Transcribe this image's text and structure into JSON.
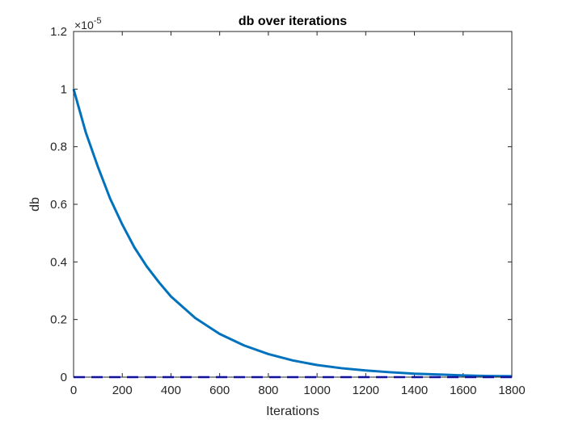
{
  "chart_data": {
    "type": "line",
    "title": "db over iterations",
    "xlabel": "Iterations",
    "ylabel": "db",
    "y_exponent_label": "×10",
    "y_exponent_power": "-5",
    "xlim": [
      0,
      1800
    ],
    "ylim": [
      0,
      1.2
    ],
    "x_ticks": [
      "0",
      "200",
      "400",
      "600",
      "800",
      "1000",
      "1200",
      "1400",
      "1600",
      "1800"
    ],
    "y_ticks": [
      "0",
      "0.2",
      "0.4",
      "0.6",
      "0.8",
      "1",
      "1.2"
    ],
    "grid": false,
    "series": [
      {
        "style": "solid",
        "color": "#0072BD",
        "x": [
          0,
          50,
          100,
          150,
          200,
          250,
          300,
          350,
          400,
          500,
          600,
          700,
          800,
          900,
          1000,
          1100,
          1200,
          1300,
          1400,
          1500,
          1600,
          1700,
          1800
        ],
        "y": [
          1.0,
          0.85,
          0.73,
          0.62,
          0.53,
          0.45,
          0.385,
          0.33,
          0.28,
          0.205,
          0.15,
          0.11,
          0.08,
          0.058,
          0.042,
          0.031,
          0.023,
          0.017,
          0.012,
          0.009,
          0.006,
          0.004,
          0.003
        ]
      },
      {
        "style": "dashed",
        "color": "#0000FF",
        "x": [
          0,
          1800
        ],
        "y": [
          0,
          0
        ]
      }
    ]
  }
}
